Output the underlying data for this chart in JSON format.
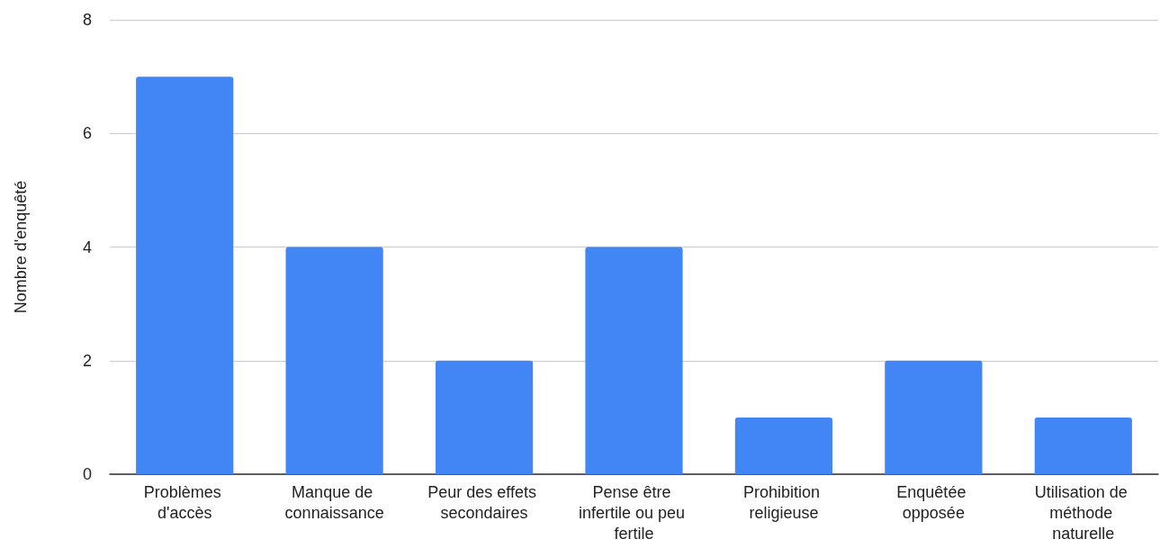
{
  "chart_data": {
    "type": "bar",
    "ylabel": "Nombre d'enquêté",
    "categories": [
      "Problèmes d'accès",
      "Manque de connaissance",
      "Peur des effets secondaires",
      "Pense être infertile ou peu fertile",
      "Prohibition religieuse",
      "Enquêtée opposée",
      "Utilisation de méthode naturelle"
    ],
    "values": [
      7,
      4,
      2,
      4,
      1,
      2,
      1
    ],
    "color": "#4285f4",
    "ylim": [
      0,
      8
    ],
    "yticks": [
      0,
      2,
      4,
      6,
      8
    ],
    "grid": "y"
  }
}
